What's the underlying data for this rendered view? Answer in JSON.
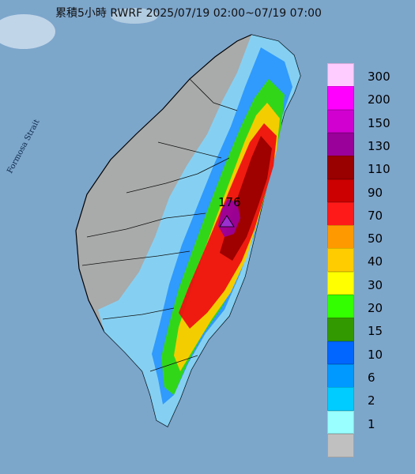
{
  "title": "累積5小時 RWRF 2025/07/19 02:00~07/19 07:00",
  "strait_label": "Formosa Strait",
  "peak": {
    "value": "176",
    "color": "#9b30d0"
  },
  "legend": [
    {
      "label": "300",
      "color": "#ffccff"
    },
    {
      "label": "200",
      "color": "#ff00ff"
    },
    {
      "label": "150",
      "color": "#d100d1"
    },
    {
      "label": "130",
      "color": "#9a009a"
    },
    {
      "label": "110",
      "color": "#990000"
    },
    {
      "label": "90",
      "color": "#cc0000"
    },
    {
      "label": "70",
      "color": "#ff1a1a"
    },
    {
      "label": "50",
      "color": "#ff9900"
    },
    {
      "label": "40",
      "color": "#ffcc00"
    },
    {
      "label": "30",
      "color": "#ffff00"
    },
    {
      "label": "20",
      "color": "#33ff00"
    },
    {
      "label": "15",
      "color": "#339900"
    },
    {
      "label": "10",
      "color": "#0066ff"
    },
    {
      "label": "6",
      "color": "#0099ff"
    },
    {
      "label": "2",
      "color": "#00ccff"
    },
    {
      "label": "1",
      "color": "#99ffff"
    },
    {
      "label": "",
      "color": "#c0c0c0"
    }
  ]
}
